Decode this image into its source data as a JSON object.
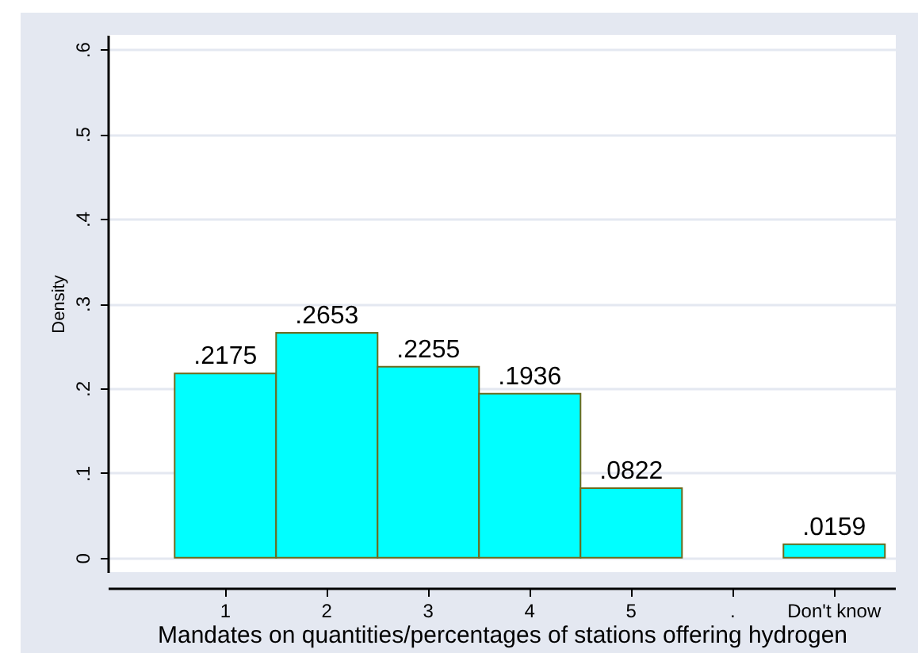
{
  "chart_data": {
    "type": "bar",
    "xlabel": "Mandates on quantities/percentages of stations offering hydrogen",
    "ylabel": "Density",
    "categories": [
      "1",
      "2",
      "3",
      "4",
      "5",
      ".",
      "Don't know"
    ],
    "values": [
      0.2175,
      0.2653,
      0.2255,
      0.1936,
      0.0822,
      null,
      0.0159
    ],
    "value_labels": [
      ".2175",
      ".2653",
      ".2255",
      ".1936",
      ".0822",
      null,
      ".0159"
    ],
    "color": "#00ffff",
    "ylim": [
      -0.017,
      0.617
    ],
    "yticks": [
      0,
      {
        "value": 0.1,
        "label": ".1"
      },
      {
        "value": 0.2,
        "label": ".2"
      },
      {
        "value": 0.3,
        "label": ".3"
      },
      {
        "value": 0.4,
        "label": ".4"
      },
      {
        "value": 0.5,
        "label": ".5"
      },
      {
        "value": 0.6,
        "label": ".6"
      }
    ],
    "grid": true
  }
}
